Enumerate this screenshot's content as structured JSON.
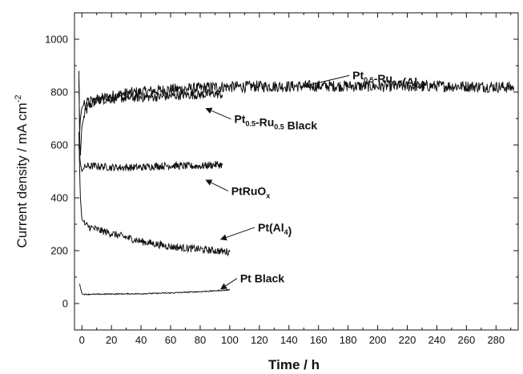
{
  "chart_data": {
    "type": "line",
    "xlabel": "Time / h",
    "ylabel_main": "Current density / mA cm",
    "ylabel_sup": "-2",
    "xlim": [
      -5,
      295
    ],
    "ylim": [
      -100,
      1100
    ],
    "xticks": [
      0,
      20,
      40,
      60,
      80,
      100,
      120,
      140,
      160,
      180,
      200,
      220,
      240,
      260,
      280
    ],
    "yticks": [
      0,
      200,
      400,
      600,
      800,
      1000
    ],
    "grid": false,
    "series": [
      {
        "name": "Pt0.5-Ru0.5(Al4)",
        "noise": 22,
        "x": [
          -2,
          -1.5,
          -1,
          0,
          2,
          5,
          10,
          20,
          30,
          40,
          50,
          60,
          70,
          80,
          90,
          100,
          120,
          140,
          160,
          180,
          200,
          220,
          240,
          260,
          280,
          292
        ],
        "y": [
          880,
          620,
          560,
          670,
          720,
          750,
          770,
          785,
          795,
          800,
          805,
          810,
          812,
          815,
          820,
          820,
          822,
          822,
          823,
          823,
          822,
          822,
          823,
          822,
          820,
          818
        ]
      },
      {
        "name": "Pt0.5-Ru0.5 Black",
        "noise": 18,
        "x": [
          -2,
          -1.5,
          -1,
          0,
          2,
          5,
          10,
          20,
          30,
          40,
          50,
          60,
          70,
          80,
          90,
          95
        ],
        "y": [
          850,
          650,
          700,
          740,
          760,
          765,
          770,
          775,
          778,
          780,
          782,
          785,
          790,
          790,
          795,
          790
        ]
      },
      {
        "name": "PtRuOx",
        "noise": 14,
        "x": [
          -2,
          -1.5,
          -1,
          0,
          1,
          3,
          5,
          10,
          20,
          30,
          40,
          50,
          60,
          70,
          80,
          90,
          95
        ],
        "y": [
          600,
          560,
          530,
          500,
          510,
          520,
          520,
          520,
          515,
          515,
          515,
          520,
          522,
          520,
          520,
          525,
          525
        ]
      },
      {
        "name": "Pt(Al4)",
        "noise": 14,
        "x": [
          -2,
          -1.5,
          -1,
          0,
          2,
          5,
          10,
          20,
          30,
          40,
          50,
          60,
          70,
          80,
          90,
          100
        ],
        "y": [
          650,
          500,
          400,
          320,
          300,
          290,
          280,
          265,
          250,
          235,
          225,
          215,
          210,
          205,
          200,
          195
        ]
      },
      {
        "name": "Pt Black",
        "noise": 2,
        "x": [
          -1.5,
          -1,
          0,
          0.5,
          5,
          10,
          20,
          40,
          60,
          80,
          90,
          100
        ],
        "y": [
          75,
          60,
          40,
          35,
          35,
          35,
          36,
          37,
          40,
          45,
          48,
          52
        ]
      }
    ],
    "annotations": [
      {
        "label_main": "Pt",
        "sub1": "0.5",
        "mid": "-Ru",
        "sub2": "0.5",
        "tail": "(Al",
        "sub3": "4",
        "end": ")",
        "text_x": 183,
        "text_y": 863,
        "arrow_to_x": 150,
        "arrow_to_y": 822
      },
      {
        "label_main": "Pt",
        "sub1": "0.5",
        "mid": "-Ru",
        "sub2": "0.5",
        "tail": " Black",
        "text_x": 103,
        "text_y": 698,
        "arrow_to_x": 84,
        "arrow_to_y": 738
      },
      {
        "label_main": "PtRuO",
        "sub1": "x",
        "text_x": 101,
        "text_y": 426,
        "arrow_to_x": 84,
        "arrow_to_y": 467
      },
      {
        "label_main": "Pt(Al",
        "sub1": "4",
        "end": ")",
        "text_x": 119,
        "text_y": 288,
        "arrow_to_x": 94,
        "arrow_to_y": 243
      },
      {
        "label_main": "Pt Black",
        "text_x": 107,
        "text_y": 95,
        "arrow_to_x": 94,
        "arrow_to_y": 55
      }
    ]
  }
}
